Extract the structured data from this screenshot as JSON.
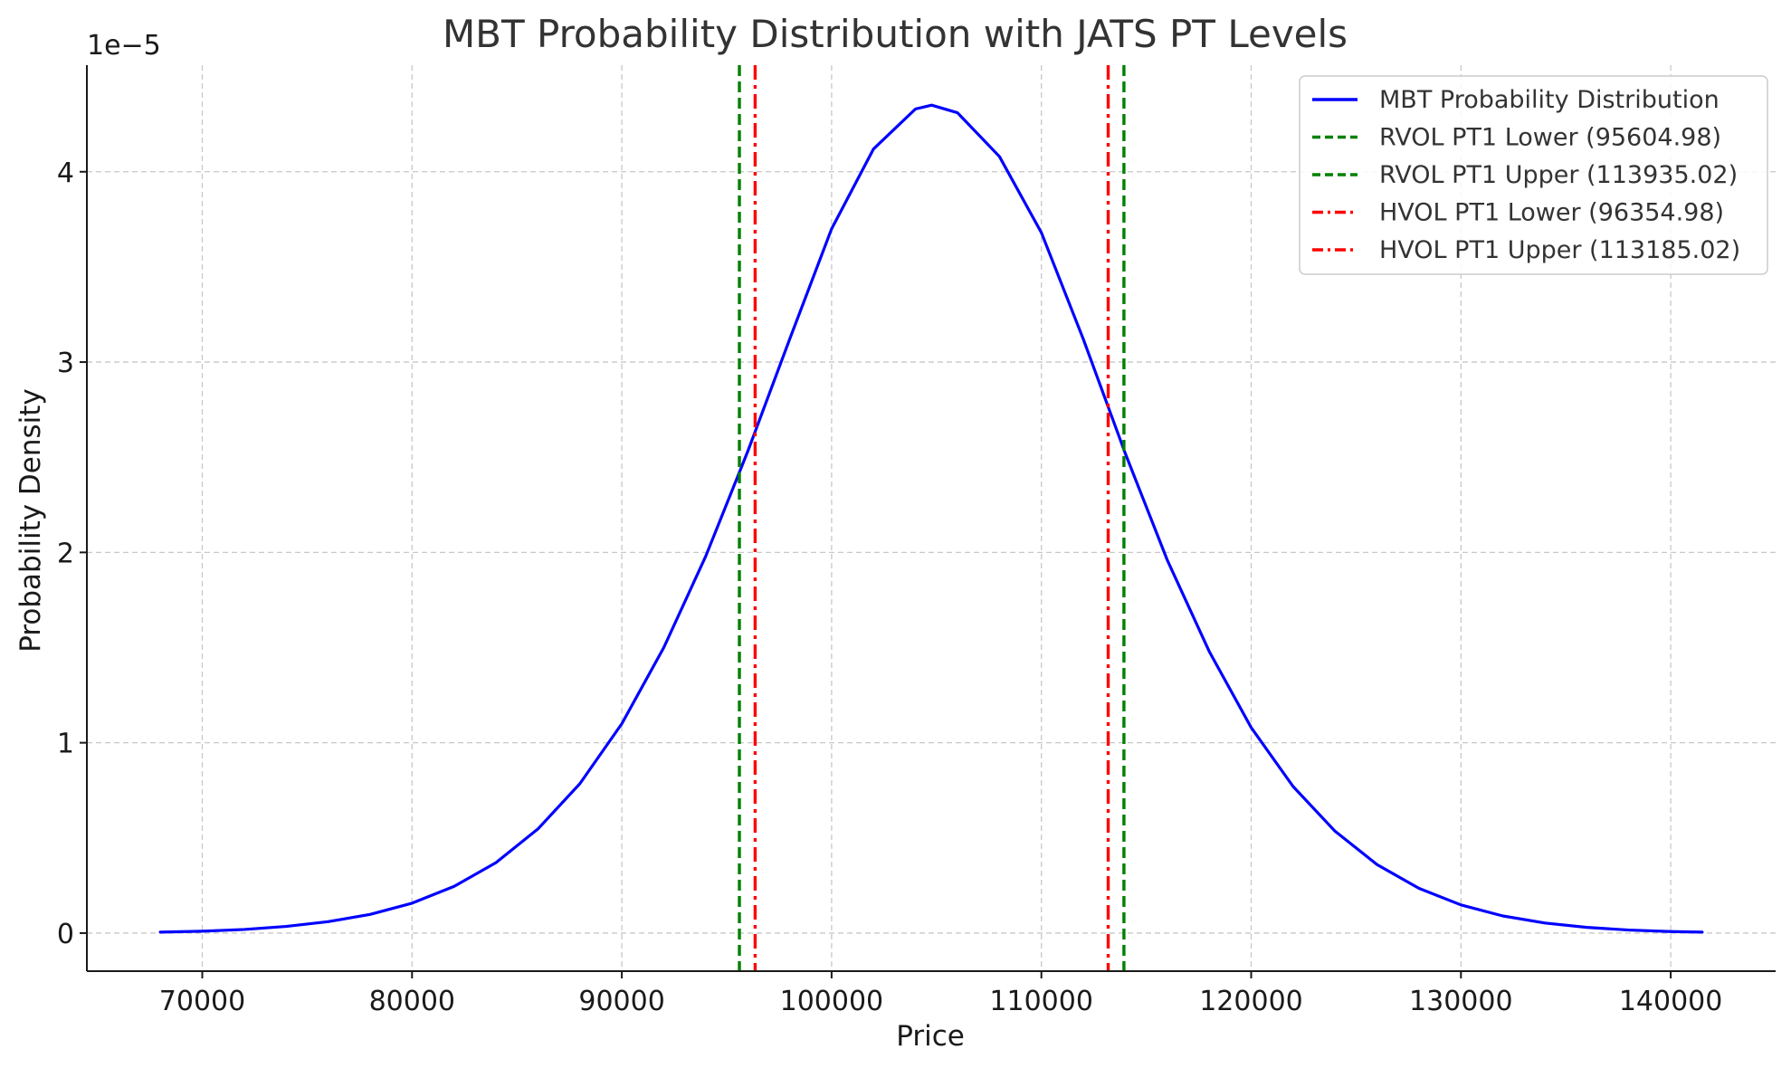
{
  "chart_data": {
    "type": "line",
    "title": "MBT Probability Distribution with JATS PT Levels",
    "xlabel": "Price",
    "ylabel": "Probability Density",
    "y_scale_label": "1e−5",
    "xlim": [
      64500,
      145000
    ],
    "ylim": [
      -2e-06,
      4.56e-05
    ],
    "x_ticks": [
      70000,
      80000,
      90000,
      100000,
      110000,
      120000,
      130000,
      140000
    ],
    "x_tick_labels": [
      "70000",
      "80000",
      "90000",
      "100000",
      "110000",
      "120000",
      "130000",
      "140000"
    ],
    "y_ticks": [
      0,
      1e-05,
      2e-05,
      3e-05,
      4e-05
    ],
    "y_tick_labels": [
      "0",
      "1",
      "2",
      "3",
      "4"
    ],
    "grid": true,
    "legend_position": "top-right",
    "series": [
      {
        "name": "MBT Probability Distribution",
        "kind": "curve",
        "color": "#0000ff",
        "style": "solid",
        "x": [
          68000,
          70000,
          72000,
          74000,
          76000,
          78000,
          80000,
          82000,
          84000,
          86000,
          88000,
          90000,
          92000,
          94000,
          96000,
          98000,
          100000,
          102000,
          104000,
          104770,
          106000,
          108000,
          110000,
          112000,
          114000,
          116000,
          118000,
          120000,
          122000,
          124000,
          126000,
          128000,
          130000,
          132000,
          134000,
          136000,
          138000,
          140000,
          141500
        ],
        "y": [
          5e-08,
          1e-07,
          1.9e-07,
          3.5e-07,
          6e-07,
          9.8e-07,
          1.57e-06,
          2.45e-06,
          3.7e-06,
          5.47e-06,
          7.85e-06,
          1.1e-05,
          1.5e-05,
          1.98e-05,
          2.53e-05,
          3.12e-05,
          3.7e-05,
          4.12e-05,
          4.33e-05,
          4.35e-05,
          4.31e-05,
          4.08e-05,
          3.68e-05,
          3.12e-05,
          2.52e-05,
          1.96e-05,
          1.48e-05,
          1.08e-05,
          7.7e-06,
          5.35e-06,
          3.6e-06,
          2.35e-06,
          1.48e-06,
          9e-07,
          5.3e-07,
          3e-07,
          1.6e-07,
          8e-08,
          5e-08
        ]
      },
      {
        "name": "RVOL PT1 Lower (95604.98)",
        "kind": "vline",
        "x": 95604.98,
        "color": "#008000",
        "style": "dashed"
      },
      {
        "name": "RVOL PT1 Upper (113935.02)",
        "kind": "vline",
        "x": 113935.02,
        "color": "#008000",
        "style": "dashed"
      },
      {
        "name": "HVOL PT1 Lower (96354.98)",
        "kind": "vline",
        "x": 96354.98,
        "color": "#ff0000",
        "style": "dashdot"
      },
      {
        "name": "HVOL PT1 Upper (113185.02)",
        "kind": "vline",
        "x": 113185.02,
        "color": "#ff0000",
        "style": "dashdot"
      }
    ]
  }
}
